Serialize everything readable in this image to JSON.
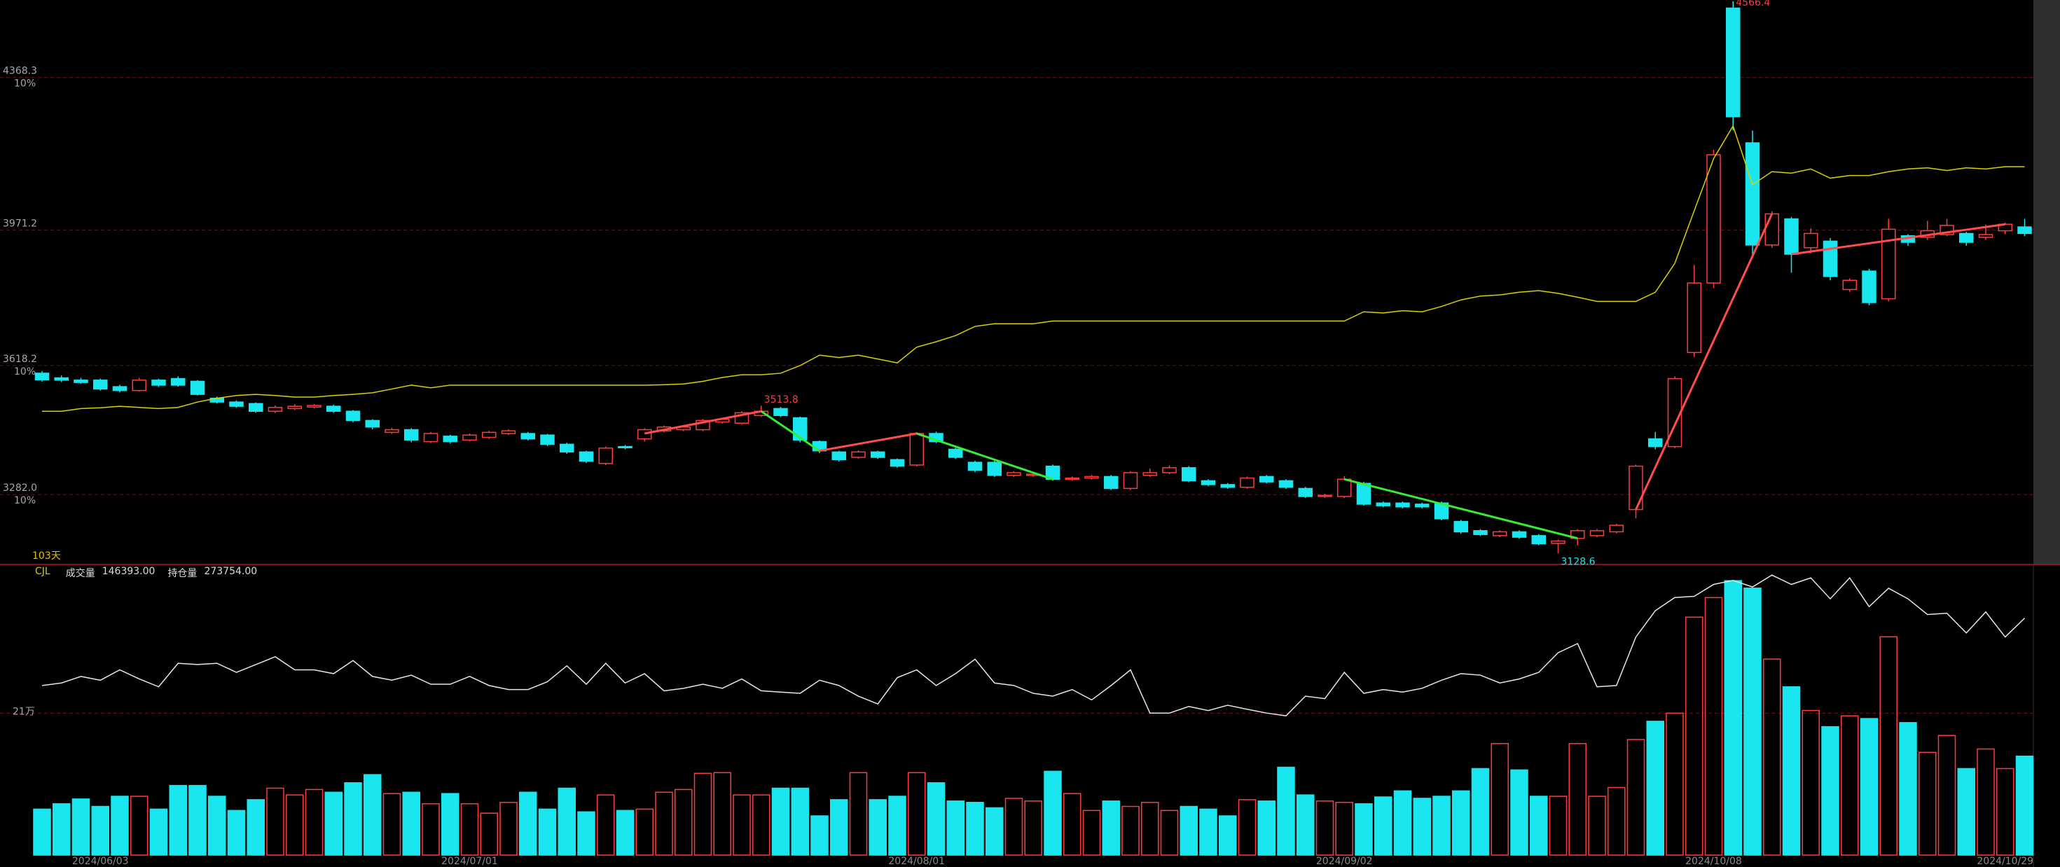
{
  "chart_data": [
    {
      "type": "candlestick",
      "categories": [
        null,
        null,
        null,
        "2024/06/03",
        null,
        null,
        null,
        null,
        null,
        null,
        null,
        null,
        null,
        null,
        null,
        null,
        null,
        null,
        null,
        null,
        null,
        null,
        "2024/07/01",
        null,
        null,
        null,
        null,
        null,
        null,
        null,
        null,
        null,
        null,
        null,
        null,
        null,
        null,
        null,
        null,
        null,
        null,
        null,
        null,
        null,
        null,
        "2024/08/01",
        null,
        null,
        null,
        null,
        null,
        null,
        null,
        null,
        null,
        null,
        null,
        null,
        null,
        null,
        null,
        null,
        null,
        null,
        null,
        null,
        null,
        "2024/09/02",
        null,
        null,
        null,
        null,
        null,
        null,
        null,
        null,
        null,
        null,
        null,
        null,
        null,
        null,
        null,
        null,
        null,
        null,
        "2024/10/08",
        null,
        null,
        null,
        null,
        null,
        null,
        null,
        null,
        null,
        null,
        null,
        null,
        null,
        null,
        "2024/10/29",
        null
      ],
      "open": [
        3598,
        3586,
        3580,
        3580,
        3563,
        3553,
        3580,
        3584,
        3577,
        3533,
        3523,
        3519,
        3499,
        3506,
        3510,
        3512,
        3499,
        3475,
        3444,
        3451,
        3420,
        3434,
        3424,
        3431,
        3441,
        3441,
        3437,
        3413,
        3393,
        3363,
        3407,
        3427,
        3448,
        3451,
        3451,
        3471,
        3468,
        3488,
        3506,
        3482,
        3420,
        3393,
        3379,
        3393,
        3373,
        3359,
        3441,
        3400,
        3366,
        3366,
        3332,
        3332,
        3356,
        3322,
        3325,
        3329,
        3298,
        3332,
        3339,
        3352,
        3318,
        3308,
        3301,
        3329,
        3318,
        3298,
        3277,
        3277,
        3311,
        3260,
        3260,
        3257,
        3260,
        3212,
        3188,
        3175,
        3185,
        3175,
        3155,
        3168,
        3175,
        3185,
        3243,
        3427,
        3407,
        3652,
        3833,
        4549,
        4198,
        3932,
        4000,
        3925,
        3942,
        3816,
        3864,
        3792,
        3956,
        3952,
        3959,
        3962,
        3952,
        3969,
        3979
      ],
      "high": [
        3604,
        3592,
        3586,
        3584,
        3568,
        3586,
        3584,
        3590,
        3580,
        3537,
        3527,
        3522,
        3514,
        3517,
        3518,
        3516,
        3502,
        3478,
        3456,
        3455,
        3445,
        3438,
        3441,
        3448,
        3452,
        3445,
        3440,
        3417,
        3396,
        3407,
        3411,
        3455,
        3462,
        3462,
        3479,
        3482,
        3499,
        3513.8,
        3510,
        3485,
        3423,
        3396,
        3397,
        3396,
        3376,
        3445,
        3446,
        3404,
        3370,
        3370,
        3343,
        3339,
        3360,
        3329,
        3333,
        3333,
        3343,
        3350,
        3358,
        3356,
        3322,
        3312,
        3329,
        3333,
        3322,
        3302,
        3284,
        3330,
        3315,
        3264,
        3264,
        3261,
        3264,
        3216,
        3192,
        3189,
        3189,
        3179,
        3165,
        3192,
        3192,
        3206,
        3360,
        3445,
        3590,
        3880,
        4180,
        4566.4,
        4230,
        4020,
        4005,
        3975,
        3950,
        3845,
        3870,
        4000,
        3960,
        3995,
        4000,
        3966,
        3985,
        3990,
        4000
      ],
      "low": [
        3576,
        3575,
        3570,
        3553,
        3548,
        3550,
        3562,
        3563,
        3540,
        3519,
        3508,
        3495,
        3494,
        3502,
        3506,
        3495,
        3470,
        3452,
        3440,
        3418,
        3416,
        3415,
        3420,
        3427,
        3437,
        3423,
        3408,
        3388,
        3364,
        3359,
        3400,
        3420,
        3444,
        3447,
        3447,
        3467,
        3464,
        3484,
        3484,
        3418,
        3390,
        3368,
        3375,
        3375,
        3352,
        3355,
        3416,
        3375,
        3340,
        3328,
        3328,
        3328,
        3318,
        3318,
        3321,
        3294,
        3294,
        3328,
        3335,
        3314,
        3304,
        3297,
        3297,
        3311,
        3297,
        3273,
        3273,
        3273,
        3253,
        3249,
        3246,
        3246,
        3215,
        3180,
        3174,
        3171,
        3167,
        3150,
        3128.6,
        3150,
        3171,
        3181,
        3220,
        3400,
        3403,
        3640,
        3820,
        4230,
        3900,
        3925,
        3860,
        3910,
        3840,
        3810,
        3775,
        3785,
        3930,
        3945,
        3955,
        3930,
        3945,
        3960,
        3955
      ],
      "close": [
        3581,
        3580,
        3574,
        3557,
        3553,
        3580,
        3567,
        3567,
        3543,
        3523,
        3512,
        3499,
        3509,
        3512,
        3514,
        3499,
        3475,
        3458,
        3451,
        3424,
        3441,
        3420,
        3437,
        3444,
        3448,
        3427,
        3413,
        3393,
        3369,
        3403,
        3404,
        3451,
        3458,
        3458,
        3475,
        3478,
        3495,
        3499,
        3488,
        3424,
        3396,
        3373,
        3393,
        3379,
        3356,
        3441,
        3420,
        3379,
        3345,
        3332,
        3339,
        3335,
        3322,
        3325,
        3329,
        3298,
        3339,
        3339,
        3352,
        3318,
        3308,
        3301,
        3325,
        3315,
        3301,
        3277,
        3280,
        3322,
        3257,
        3253,
        3250,
        3250,
        3219,
        3185,
        3178,
        3185,
        3171,
        3154,
        3161,
        3188,
        3188,
        3202,
        3356,
        3407,
        3584,
        3833,
        4167,
        4266,
        3932,
        4013,
        3908,
        3962,
        3850,
        3840,
        3782,
        3973,
        3939,
        3969,
        3983,
        3939,
        3959,
        3986,
        3962
      ],
      "up_color": "#ff3b3b",
      "down_color": "#19e6ee",
      "ylim": [
        3100,
        4570
      ],
      "yticks": [
        {
          "value": 3282,
          "label": "3282.0",
          "sublabel": "10%"
        },
        {
          "value": 3618.2,
          "label": "3618.2",
          "sublabel": "10%"
        },
        3971.2,
        {
          "value": 4368.3,
          "label": "4368.3",
          "sublabel": "10%"
        }
      ],
      "grid": true,
      "overlay": {
        "color": "#d8d000",
        "values": [
          3499,
          3499,
          3506,
          3508,
          3512,
          3509,
          3506,
          3509,
          3523,
          3533,
          3540,
          3543,
          3540,
          3536,
          3536,
          3540,
          3543,
          3547,
          3557,
          3567,
          3560,
          3567,
          3567,
          3567,
          3567,
          3567,
          3567,
          3567,
          3567,
          3567,
          3567,
          3567,
          3568,
          3570,
          3577,
          3587,
          3594,
          3594,
          3598,
          3618,
          3645,
          3639,
          3645,
          3635,
          3625,
          3666,
          3680,
          3696,
          3720,
          3727,
          3727,
          3727,
          3734,
          3734,
          3734,
          3734,
          3734,
          3734,
          3734,
          3734,
          3734,
          3734,
          3734,
          3734,
          3734,
          3734,
          3734,
          3734,
          3758,
          3755,
          3761,
          3758,
          3772,
          3789,
          3799,
          3802,
          3809,
          3813,
          3806,
          3796,
          3785,
          3785,
          3785,
          3809,
          3884,
          4021,
          4157,
          4242,
          4089,
          4123,
          4119,
          4130,
          4106,
          4113,
          4113,
          4123,
          4130,
          4133,
          4126,
          4133,
          4130,
          4136,
          4136
        ]
      },
      "segments": [
        {
          "color": "#ff4d4d",
          "x": [
            31,
            37
          ],
          "values": [
            3441,
            3499
          ]
        },
        {
          "color": "#33ee33",
          "x": [
            37,
            40
          ],
          "values": [
            3499,
            3396
          ]
        },
        {
          "color": "#ff4d4d",
          "x": [
            40,
            45
          ],
          "values": [
            3396,
            3441
          ]
        },
        {
          "color": "#33ee33",
          "x": [
            45,
            52
          ],
          "values": [
            3441,
            3322
          ]
        },
        {
          "color": "#33ee33",
          "x": [
            67,
            79
          ],
          "values": [
            3322,
            3168
          ]
        },
        {
          "color": "#ff4d4d",
          "x": [
            82,
            89
          ],
          "values": [
            3243,
            4013
          ]
        },
        {
          "color": "#ff4d4d",
          "x": [
            90,
            101
          ],
          "values": [
            3908,
            3986
          ]
        }
      ],
      "annotations": [
        {
          "label": "4566.4",
          "value": 4566.4,
          "color": "#ff3b3b"
        },
        {
          "label": "3513.8",
          "value": 3513.8,
          "color": "#ff3b3b"
        },
        {
          "label": "3128.6",
          "value": 3128.6,
          "color": "#19e6ee"
        }
      ],
      "period_label": "103天"
    },
    {
      "type": "bar",
      "indicator": "CJL",
      "ylim": [
        0,
        430000
      ],
      "yticks": [
        {
          "value": 210000,
          "label": "21万"
        }
      ],
      "y2lim": [
        180000,
        295000
      ],
      "grid": true,
      "series": [
        {
          "name": "成交量",
          "last_label": "146393.00",
          "values": [
            68000,
            76000,
            83000,
            72000,
            87000,
            87000,
            68000,
            103000,
            103000,
            87000,
            66000,
            82000,
            99000,
            89000,
            97000,
            93000,
            107000,
            119000,
            91000,
            93000,
            76000,
            91000,
            76000,
            62000,
            78000,
            93000,
            68000,
            99000,
            64000,
            89000,
            66000,
            68000,
            93000,
            97000,
            121000,
            122000,
            89000,
            89000,
            99000,
            99000,
            58000,
            82000,
            122000,
            82000,
            87000,
            122000,
            107000,
            80000,
            78000,
            70000,
            84000,
            80000,
            124000,
            91000,
            66000,
            80000,
            72000,
            78000,
            66000,
            72000,
            68000,
            58000,
            82000,
            80000,
            130000,
            89000,
            80000,
            78000,
            76000,
            86000,
            95000,
            84000,
            87000,
            95000,
            128000,
            165000,
            126000,
            87000,
            87000,
            165000,
            87000,
            100000,
            171000,
            198000,
            210000,
            352000,
            381000,
            406000,
            395000,
            290000,
            249000,
            214000,
            190000,
            206000,
            202000,
            323000,
            196000,
            152000,
            177000,
            128000,
            157000,
            128000,
            146393
          ]
        },
        {
          "name": "持仓量",
          "last_label": "273754.00",
          "axis": "y2",
          "color": "#e6e6e6",
          "values": [
            247100,
            248100,
            250700,
            249200,
            253300,
            249700,
            246600,
            255900,
            255400,
            255900,
            252300,
            255400,
            258500,
            253300,
            253300,
            251800,
            257000,
            250700,
            249200,
            251200,
            247600,
            247600,
            250700,
            247100,
            245500,
            245500,
            248600,
            254900,
            247600,
            255900,
            248100,
            251800,
            245000,
            246000,
            247600,
            246000,
            249700,
            245000,
            244500,
            244000,
            249200,
            247100,
            242900,
            239800,
            250200,
            253300,
            247100,
            251800,
            257500,
            248100,
            247100,
            244000,
            242900,
            245500,
            241400,
            247100,
            253300,
            236200,
            236200,
            238800,
            237200,
            239300,
            237700,
            236200,
            235100,
            242900,
            241900,
            252300,
            244000,
            245500,
            244500,
            246000,
            249200,
            251800,
            251200,
            248100,
            249700,
            252300,
            260100,
            263700,
            246600,
            247100,
            266300,
            276700,
            281900,
            282400,
            287100,
            288700,
            286100,
            290800,
            287100,
            289700,
            281400,
            289700,
            278300,
            285600,
            281400,
            275200,
            275700,
            267900,
            276200,
            266300,
            273754
          ]
        }
      ]
    }
  ]
}
